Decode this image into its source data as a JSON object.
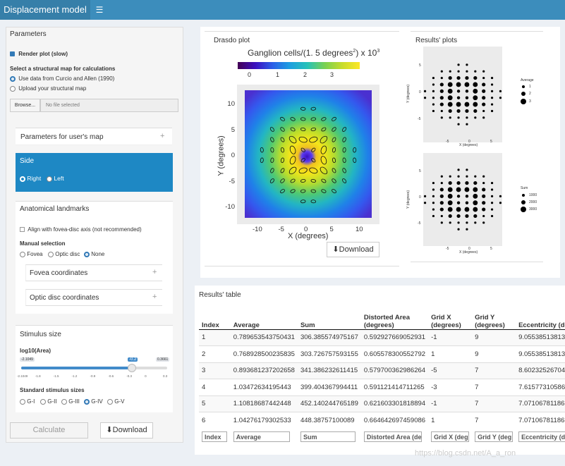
{
  "header": {
    "title": "Displacement model",
    "menu_icon": "hamburger-icon"
  },
  "sidebar": {
    "title": "Parameters",
    "render_plot": "Render plot (slow)",
    "map_prompt": "Select a structural map for calculations",
    "map_option1": "Use data from Curcio and Allen (1990)",
    "map_option2": "Upload your structural map",
    "browse": "Browse...",
    "file_placeholder": "No file selected",
    "user_map_params": "Parameters for user's map",
    "side_title": "Side",
    "side_right": "Right",
    "side_left": "Left",
    "landmarks_title": "Anatomical landmarks",
    "align_label": "Align with fovea-disc axis (not recommended)",
    "manual_selection": "Manual selection",
    "manual_opts": [
      "Fovea",
      "Optic disc",
      "None"
    ],
    "fovea_coords": "Fovea coordinates",
    "optic_coords": "Optic disc coordinates",
    "stimulus_title": "Stimulus size",
    "log_label": "log10(Area)",
    "slider_min": "-2.1049",
    "slider_max": "0.3661",
    "slider_value": "-0.2",
    "slider_ticks": [
      "-2.1049",
      "-1.8",
      "-1.5",
      "-1.2",
      "-0.9",
      "-0.6",
      "-0.3",
      "0",
      "0.3"
    ],
    "std_sizes": "Standard stimulus sizes",
    "sizes": [
      "G-I",
      "G-II",
      "G-III",
      "G-IV",
      "G-V"
    ],
    "calculate": "Calculate",
    "download": "Download"
  },
  "drasdo": {
    "title": "Drasdo plot",
    "chart_title_main": "Ganglion cells/(1. 5 degrees",
    "chart_title_sup": "2",
    "chart_title_end": ") x 10",
    "chart_title_sup2": "3",
    "colorbar_ticks": [
      "0",
      "1",
      "2",
      "3"
    ],
    "xlabel": "X (degrees)",
    "ylabel": "Y (degrees)",
    "xticks": [
      "-10",
      "-5",
      "0",
      "5",
      "10"
    ],
    "yticks": [
      "10",
      "5",
      "0",
      "-5",
      "-10"
    ],
    "download": "Download"
  },
  "results_plots": {
    "title": "Results' plots",
    "top": {
      "legend_title": "Average",
      "legend_items": [
        "1",
        "2",
        "3"
      ],
      "xlabel": "X (degrees)",
      "ylabel": "Y (degrees)",
      "xticks": [
        "-5",
        "0",
        "5"
      ],
      "yticks": [
        "5",
        "0",
        "-5"
      ]
    },
    "bottom": {
      "legend_title": "Sum",
      "legend_items": [
        "1000",
        "2000",
        "3000"
      ],
      "xlabel": "X (degrees)",
      "ylabel": "Y (degrees)",
      "xticks": [
        "-5",
        "0",
        "5"
      ],
      "yticks": [
        "5",
        "0",
        "-5"
      ]
    }
  },
  "table": {
    "title": "Results' table",
    "headers": [
      "Index",
      "Average",
      "Sum",
      "Distorted Area (degrees)",
      "Grid X (degrees)",
      "Grid Y (degrees)",
      "Eccentricity (degrees)"
    ],
    "rows": [
      [
        "1",
        "0.789653543750431",
        "306.385574975167",
        "0.592927669052931",
        "-1",
        "9",
        "9.05538513813"
      ],
      [
        "2",
        "0.768928500235835",
        "303.726757593155",
        "0.605578300552792",
        "1",
        "9",
        "9.05538513813"
      ],
      [
        "3",
        "0.893681237202658",
        "341.386232611415",
        "0.579700362986264",
        "-5",
        "7",
        "8.60232526704"
      ],
      [
        "4",
        "1.03472634195443",
        "399.404367994411",
        "0.591121414711265",
        "-3",
        "7",
        "7.61577310586"
      ],
      [
        "5",
        "1.10818687442448",
        "452.140244765189",
        "0.621603301818894",
        "-1",
        "7",
        "7.07106781186"
      ],
      [
        "6",
        "1.04276179302533",
        "448.38757100089",
        "0.664642697459086",
        "1",
        "7",
        "7.07106781186"
      ]
    ],
    "filters": [
      "Index",
      "Average",
      "Sum",
      "Distorted Area (de",
      "Grid X (deg",
      "Grid Y (deg",
      "Eccentricity (de"
    ]
  },
  "watermark": "https://blog.csdn.net/A_a_ron",
  "chart_data": [
    {
      "type": "heatmap",
      "title": "Ganglion cells/(1. 5 degrees^2) x 10^3",
      "xlabel": "X (degrees)",
      "ylabel": "Y (degrees)",
      "xlim": [
        -12.5,
        12.5
      ],
      "ylim": [
        -12.5,
        12.5
      ],
      "color_range": [
        0,
        3.5
      ],
      "center_value": 0,
      "ring_peak_value": 3.5
    },
    {
      "type": "scatter",
      "title": "Average",
      "xlabel": "X (degrees)",
      "ylabel": "Y (degrees)",
      "legend": [
        "1",
        "2",
        "3"
      ]
    },
    {
      "type": "scatter",
      "title": "Sum",
      "xlabel": "X (degrees)",
      "ylabel": "Y (degrees)",
      "legend": [
        "1000",
        "2000",
        "3000"
      ]
    }
  ]
}
